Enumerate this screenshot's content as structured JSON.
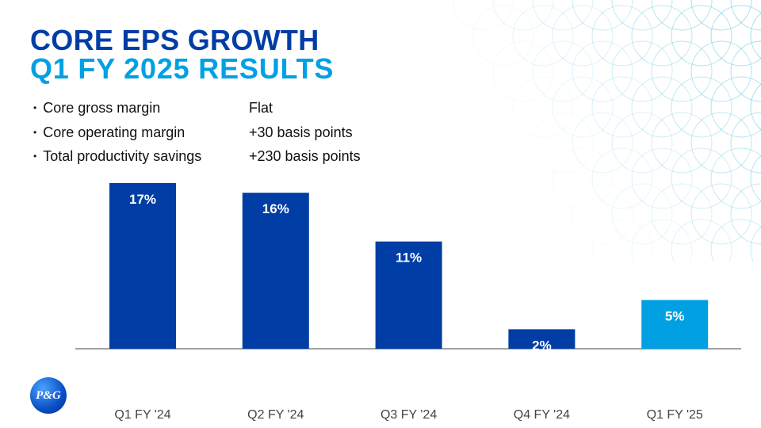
{
  "title_line1": "CORE EPS GROWTH",
  "title_line2": "Q1 FY 2025 RESULTS",
  "bullets": [
    {
      "label": "Core gross margin",
      "value": "Flat"
    },
    {
      "label": "Core operating margin",
      "value": "+30 basis points"
    },
    {
      "label": "Total productivity savings",
      "value": "+230 basis points"
    }
  ],
  "logo_text": "P&G",
  "colors": {
    "dark_blue": "#003da5",
    "light_blue": "#00a0e3"
  },
  "chart_data": {
    "type": "bar",
    "title": "Core EPS Growth",
    "categories": [
      "Q1 FY '24",
      "Q2 FY '24",
      "Q3 FY '24",
      "Q4 FY '24",
      "Q1 FY '25"
    ],
    "values": [
      17,
      16,
      11,
      2,
      5
    ],
    "labels": [
      "17%",
      "16%",
      "11%",
      "2%",
      "5%"
    ],
    "bar_colors": [
      "#003da5",
      "#003da5",
      "#003da5",
      "#003da5",
      "#00a0e3"
    ],
    "ylim": [
      0,
      17
    ],
    "xlabel": "",
    "ylabel": "",
    "grid": false
  }
}
